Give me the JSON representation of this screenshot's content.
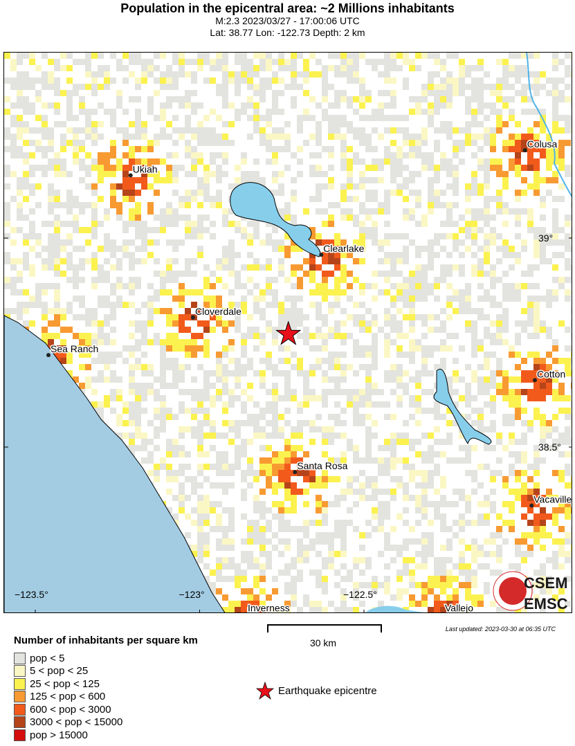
{
  "header": {
    "title": "Population in the epicentral area: ~2 Millions inhabitants",
    "subtitle": "M:2.3 2023/03/27 - 17:00:06 UTC",
    "location": "Lat: 38.77 Lon: -122.73 Depth: 2 km"
  },
  "map": {
    "cities": [
      {
        "name": "Ukiah",
        "lon": -123.21,
        "lat": 39.15
      },
      {
        "name": "Clearlake",
        "lon": -122.63,
        "lat": 38.96
      },
      {
        "name": "Cloverdale",
        "lon": -123.02,
        "lat": 38.81
      },
      {
        "name": "Sea Ranch",
        "lon": -123.46,
        "lat": 38.72
      },
      {
        "name": "Santa Rosa",
        "lon": -122.71,
        "lat": 38.44
      },
      {
        "name": "Colusa",
        "lon": -122.01,
        "lat": 39.21
      },
      {
        "name": "Cotton",
        "lon": -121.98,
        "lat": 38.66
      },
      {
        "name": "Vacaville",
        "lon": -121.99,
        "lat": 38.36
      },
      {
        "name": "Vallejo",
        "lon": -122.26,
        "lat": 38.1
      },
      {
        "name": "Inverness",
        "lon": -122.86,
        "lat": 38.1
      }
    ],
    "epicenter": {
      "lon": -122.73,
      "lat": 38.77
    },
    "lon_ticks": [
      "−123.5°",
      "−123°",
      "−122.5°"
    ],
    "lat_ticks": [
      "39°",
      "38.5°"
    ],
    "colors": {
      "ocean": "#a3cce3",
      "lake": "#87ceeb",
      "river": "#4fb3e8"
    }
  },
  "legend": {
    "title": "Number of inhabitants per square km",
    "classes": [
      {
        "label": "pop < 5",
        "color": "#e3e4df"
      },
      {
        "label": "5 < pop < 25",
        "color": "#fbf7c4"
      },
      {
        "label": "25 < pop < 125",
        "color": "#fbf24f"
      },
      {
        "label": "125 < pop < 600",
        "color": "#f89a32"
      },
      {
        "label": "600 < pop < 3000",
        "color": "#f25a1c"
      },
      {
        "label": "3000 < pop < 15000",
        "color": "#b5441a"
      },
      {
        "label": "pop > 15000",
        "color": "#d40d0d"
      }
    ],
    "epicentre_label": "Earthquake epicentre"
  },
  "scale": {
    "label": "30 km"
  },
  "updated": "Last updated: 2023-03-30 at 06:35 UTC",
  "logo": {
    "line1": "CSEM",
    "line2": "EMSC"
  }
}
